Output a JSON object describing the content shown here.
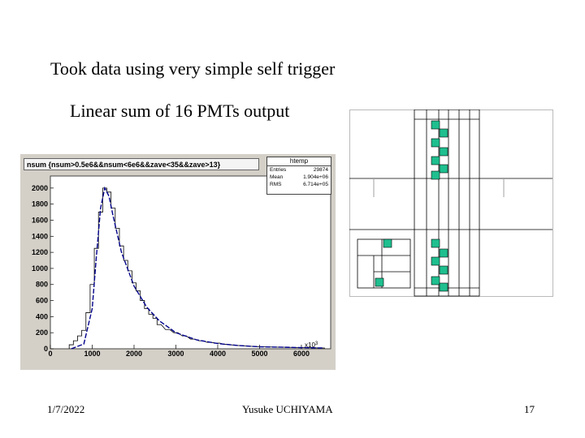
{
  "slide": {
    "headline": "Took data using very simple self trigger",
    "subhead": "Linear sum of 16 PMTs output",
    "footer": {
      "date": "1/7/2022",
      "author": "Yusuke UCHIYAMA",
      "page": "17"
    }
  },
  "histogram": {
    "title": "nsum {nsum>0.5e6&&nsum<6e6&&zave<35&&zave>13}",
    "stats": {
      "name": "htemp",
      "rows": [
        {
          "label": "Entries",
          "value": "29874"
        },
        {
          "label": "Mean",
          "value": "1.904e+06"
        },
        {
          "label": "RMS",
          "value": "6.714e+05"
        }
      ]
    },
    "x_exponent": "x10",
    "x_exponent_power": "3"
  },
  "chart_data": {
    "type": "line",
    "title": "nsum {nsum>0.5e6&&nsum<6e6&&zave<35&&zave>13}",
    "xlabel": "",
    "ylabel": "",
    "xlim": [
      0,
      6700
    ],
    "ylim": [
      0,
      2150
    ],
    "x_ticks": [
      0,
      1000,
      2000,
      3000,
      4000,
      5000,
      6000
    ],
    "x_tick_labels": [
      "0",
      "1000",
      "2000",
      "3000",
      "4000",
      "5000",
      "6000"
    ],
    "y_ticks": [
      0,
      200,
      400,
      600,
      800,
      1000,
      1200,
      1400,
      1600,
      1800,
      2000
    ],
    "y_tick_labels": [
      "0",
      "200",
      "400",
      "600",
      "800",
      "1000",
      "1200",
      "1400",
      "1600",
      "1800",
      "2000"
    ],
    "grid": false,
    "series": [
      {
        "style": "step",
        "color": "#000000",
        "x": [
          500,
          600,
          700,
          800,
          900,
          1000,
          1100,
          1200,
          1300,
          1400,
          1500,
          1600,
          1700,
          1800,
          1900,
          2000,
          2100,
          2200,
          2300,
          2400,
          2500,
          2600,
          2800,
          3000,
          3200,
          3400,
          3600,
          3800,
          4000,
          4200,
          4500,
          5000,
          5500,
          6000,
          6500
        ],
        "y": [
          50,
          100,
          160,
          230,
          450,
          800,
          1250,
          1700,
          2000,
          1950,
          1750,
          1500,
          1280,
          1100,
          970,
          820,
          720,
          600,
          500,
          430,
          380,
          300,
          240,
          200,
          160,
          120,
          100,
          80,
          70,
          55,
          40,
          25,
          20,
          15,
          10
        ]
      },
      {
        "style": "fit",
        "color": "#00008b",
        "x": [
          500,
          800,
          1000,
          1100,
          1200,
          1300,
          1400,
          1500,
          1700,
          2000,
          2300,
          2600,
          3000,
          3500,
          4000,
          4500,
          5000,
          6000,
          6500
        ],
        "y": [
          0,
          60,
          500,
          1150,
          1750,
          2000,
          1900,
          1650,
          1200,
          780,
          520,
          350,
          200,
          110,
          65,
          40,
          25,
          15,
          10
        ]
      }
    ]
  },
  "pmt_map": {
    "fill_color": "#1fbf8f",
    "border_color": "#000000"
  }
}
